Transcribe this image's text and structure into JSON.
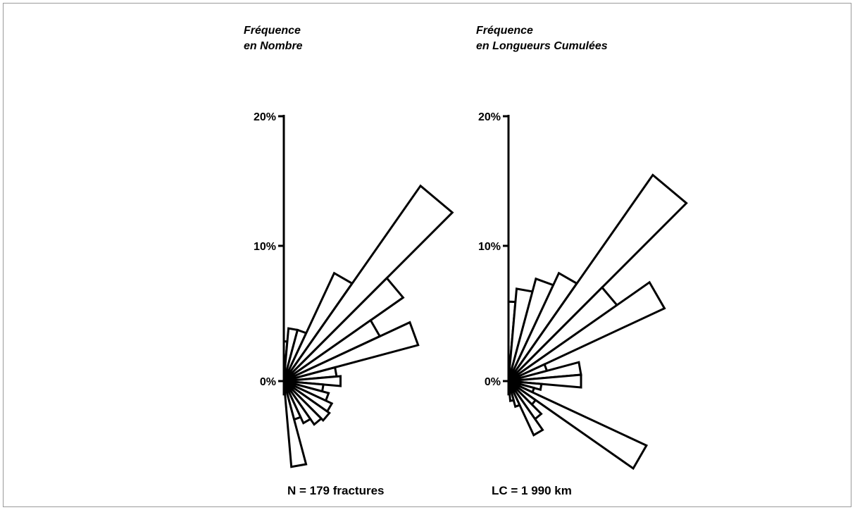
{
  "chart_data": [
    {
      "type": "rose",
      "title_lines": [
        "Fréquence",
        "en Nombre"
      ],
      "yticks": [
        "20%",
        "10%",
        "0%"
      ],
      "ytick_values": [
        20,
        10,
        0
      ],
      "footer": "N = 179 fractures",
      "sector_width_deg": 10,
      "petals": [
        {
          "azimuth_deg": 0,
          "value": 3
        },
        {
          "azimuth_deg": 10,
          "value": 4
        },
        {
          "azimuth_deg": 20,
          "value": 4
        },
        {
          "azimuth_deg": 30,
          "value": 9
        },
        {
          "azimuth_deg": 40,
          "value": 18
        },
        {
          "azimuth_deg": 50,
          "value": 11
        },
        {
          "azimuth_deg": 60,
          "value": 8
        },
        {
          "azimuth_deg": 70,
          "value": 10.5
        },
        {
          "azimuth_deg": 80,
          "value": 4
        },
        {
          "azimuth_deg": 90,
          "value": 4.3
        },
        {
          "azimuth_deg": 100,
          "value": 3
        },
        {
          "azimuth_deg": 110,
          "value": 3.5
        },
        {
          "azimuth_deg": 120,
          "value": 4
        },
        {
          "azimuth_deg": 130,
          "value": 4.2
        },
        {
          "azimuth_deg": 140,
          "value": 4
        },
        {
          "azimuth_deg": 150,
          "value": 3.5
        },
        {
          "azimuth_deg": 160,
          "value": 3
        },
        {
          "azimuth_deg": 170,
          "value": 6.5
        },
        {
          "azimuth_deg": 180,
          "value": 1
        }
      ]
    },
    {
      "type": "rose",
      "title_lines": [
        "Fréquence",
        "en Longueurs Cumulées"
      ],
      "yticks": [
        "20%",
        "10%",
        "0%"
      ],
      "ytick_values": [
        20,
        10,
        0
      ],
      "footer": "LC = 1 990 km",
      "sector_width_deg": 10,
      "petals": [
        {
          "azimuth_deg": 0,
          "value": 6
        },
        {
          "azimuth_deg": 10,
          "value": 7
        },
        {
          "azimuth_deg": 20,
          "value": 8
        },
        {
          "azimuth_deg": 30,
          "value": 9
        },
        {
          "azimuth_deg": 40,
          "value": 19
        },
        {
          "azimuth_deg": 50,
          "value": 10
        },
        {
          "azimuth_deg": 60,
          "value": 13
        },
        {
          "azimuth_deg": 70,
          "value": 3
        },
        {
          "azimuth_deg": 80,
          "value": 5.5
        },
        {
          "azimuth_deg": 90,
          "value": 5.5
        },
        {
          "azimuth_deg": 100,
          "value": 2.5
        },
        {
          "azimuth_deg": 110,
          "value": 2
        },
        {
          "azimuth_deg": 120,
          "value": 11.5
        },
        {
          "azimuth_deg": 130,
          "value": 2.5
        },
        {
          "azimuth_deg": 140,
          "value": 3.5
        },
        {
          "azimuth_deg": 150,
          "value": 4.5
        },
        {
          "azimuth_deg": 160,
          "value": 2
        },
        {
          "azimuth_deg": 170,
          "value": 1.5
        },
        {
          "azimuth_deg": 180,
          "value": 1
        }
      ]
    }
  ]
}
